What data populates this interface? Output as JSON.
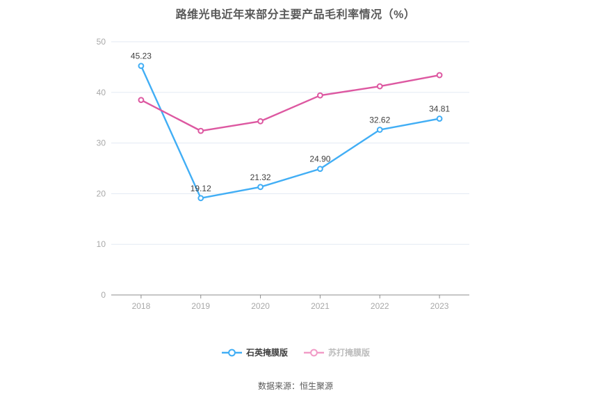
{
  "title": "路维光电近年来部分主要产品毛利率情况（%）",
  "source_note": "数据来源：恒生聚源",
  "chart_data": {
    "type": "line",
    "title": "路维光电近年来部分主要产品毛利率情况（%）",
    "categories": [
      "2018",
      "2019",
      "2020",
      "2021",
      "2022",
      "2023"
    ],
    "series": [
      {
        "name": "石英掩膜版",
        "color": "#41aef5",
        "values": [
          45.23,
          19.12,
          21.32,
          24.9,
          32.62,
          34.81
        ],
        "point_labels": [
          "45.23",
          "19.12",
          "21.32",
          "24.90",
          "32.62",
          "34.81"
        ]
      },
      {
        "name": "苏打掩膜版",
        "color": "#dd58a1",
        "values": [
          38.5,
          32.4,
          34.3,
          39.4,
          41.2,
          43.4
        ],
        "point_labels": []
      }
    ],
    "ylim": [
      0,
      50
    ],
    "yticks": [
      0,
      10,
      20,
      30,
      40,
      50
    ],
    "grid": true,
    "legend_position": "bottom",
    "xlabel": "",
    "ylabel": "",
    "point_label_color": "#404040",
    "axis_color": "#8c8c8c",
    "grid_color": "#e3eaf3",
    "tick_label_color": "#a8a8a8"
  },
  "legend": {
    "items": [
      {
        "label": "石英掩膜版",
        "marker_color": "#41aef5",
        "text_color": "#404040"
      },
      {
        "label": "苏打掩膜版",
        "marker_color": "#f19cc7",
        "text_color": "#bcbcbc"
      }
    ]
  }
}
